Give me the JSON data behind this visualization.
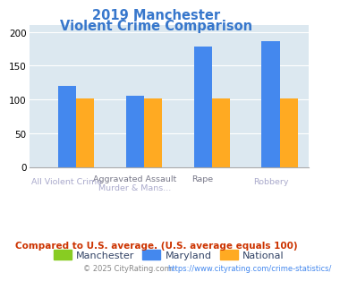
{
  "title_line1": "2019 Manchester",
  "title_line2": "Violent Crime Comparison",
  "title_color": "#3777cc",
  "series": {
    "Manchester": {
      "values": [
        0,
        0,
        0,
        0
      ],
      "color": "#88cc22"
    },
    "Maryland": {
      "values": [
        120,
        105,
        178,
        187
      ],
      "color": "#4488ee"
    },
    "National": {
      "values": [
        101,
        101,
        101,
        101
      ],
      "color": "#ffaa22"
    }
  },
  "top_labels": [
    "",
    "Aggravated Assault",
    "Rape",
    ""
  ],
  "bot_labels": [
    "All Violent Crime",
    "Murder & Mans...",
    "",
    "Robbery"
  ],
  "ylim": [
    0,
    210
  ],
  "yticks": [
    0,
    50,
    100,
    150,
    200
  ],
  "plot_bg": "#dce8f0",
  "footer_text": "Compared to U.S. average. (U.S. average equals 100)",
  "footer_color": "#cc3300",
  "copyright_text": "© 2025 CityRating.com - https://www.cityrating.com/crime-statistics/",
  "copyright_color": "#888888",
  "copyright_link_color": "#4488ee"
}
